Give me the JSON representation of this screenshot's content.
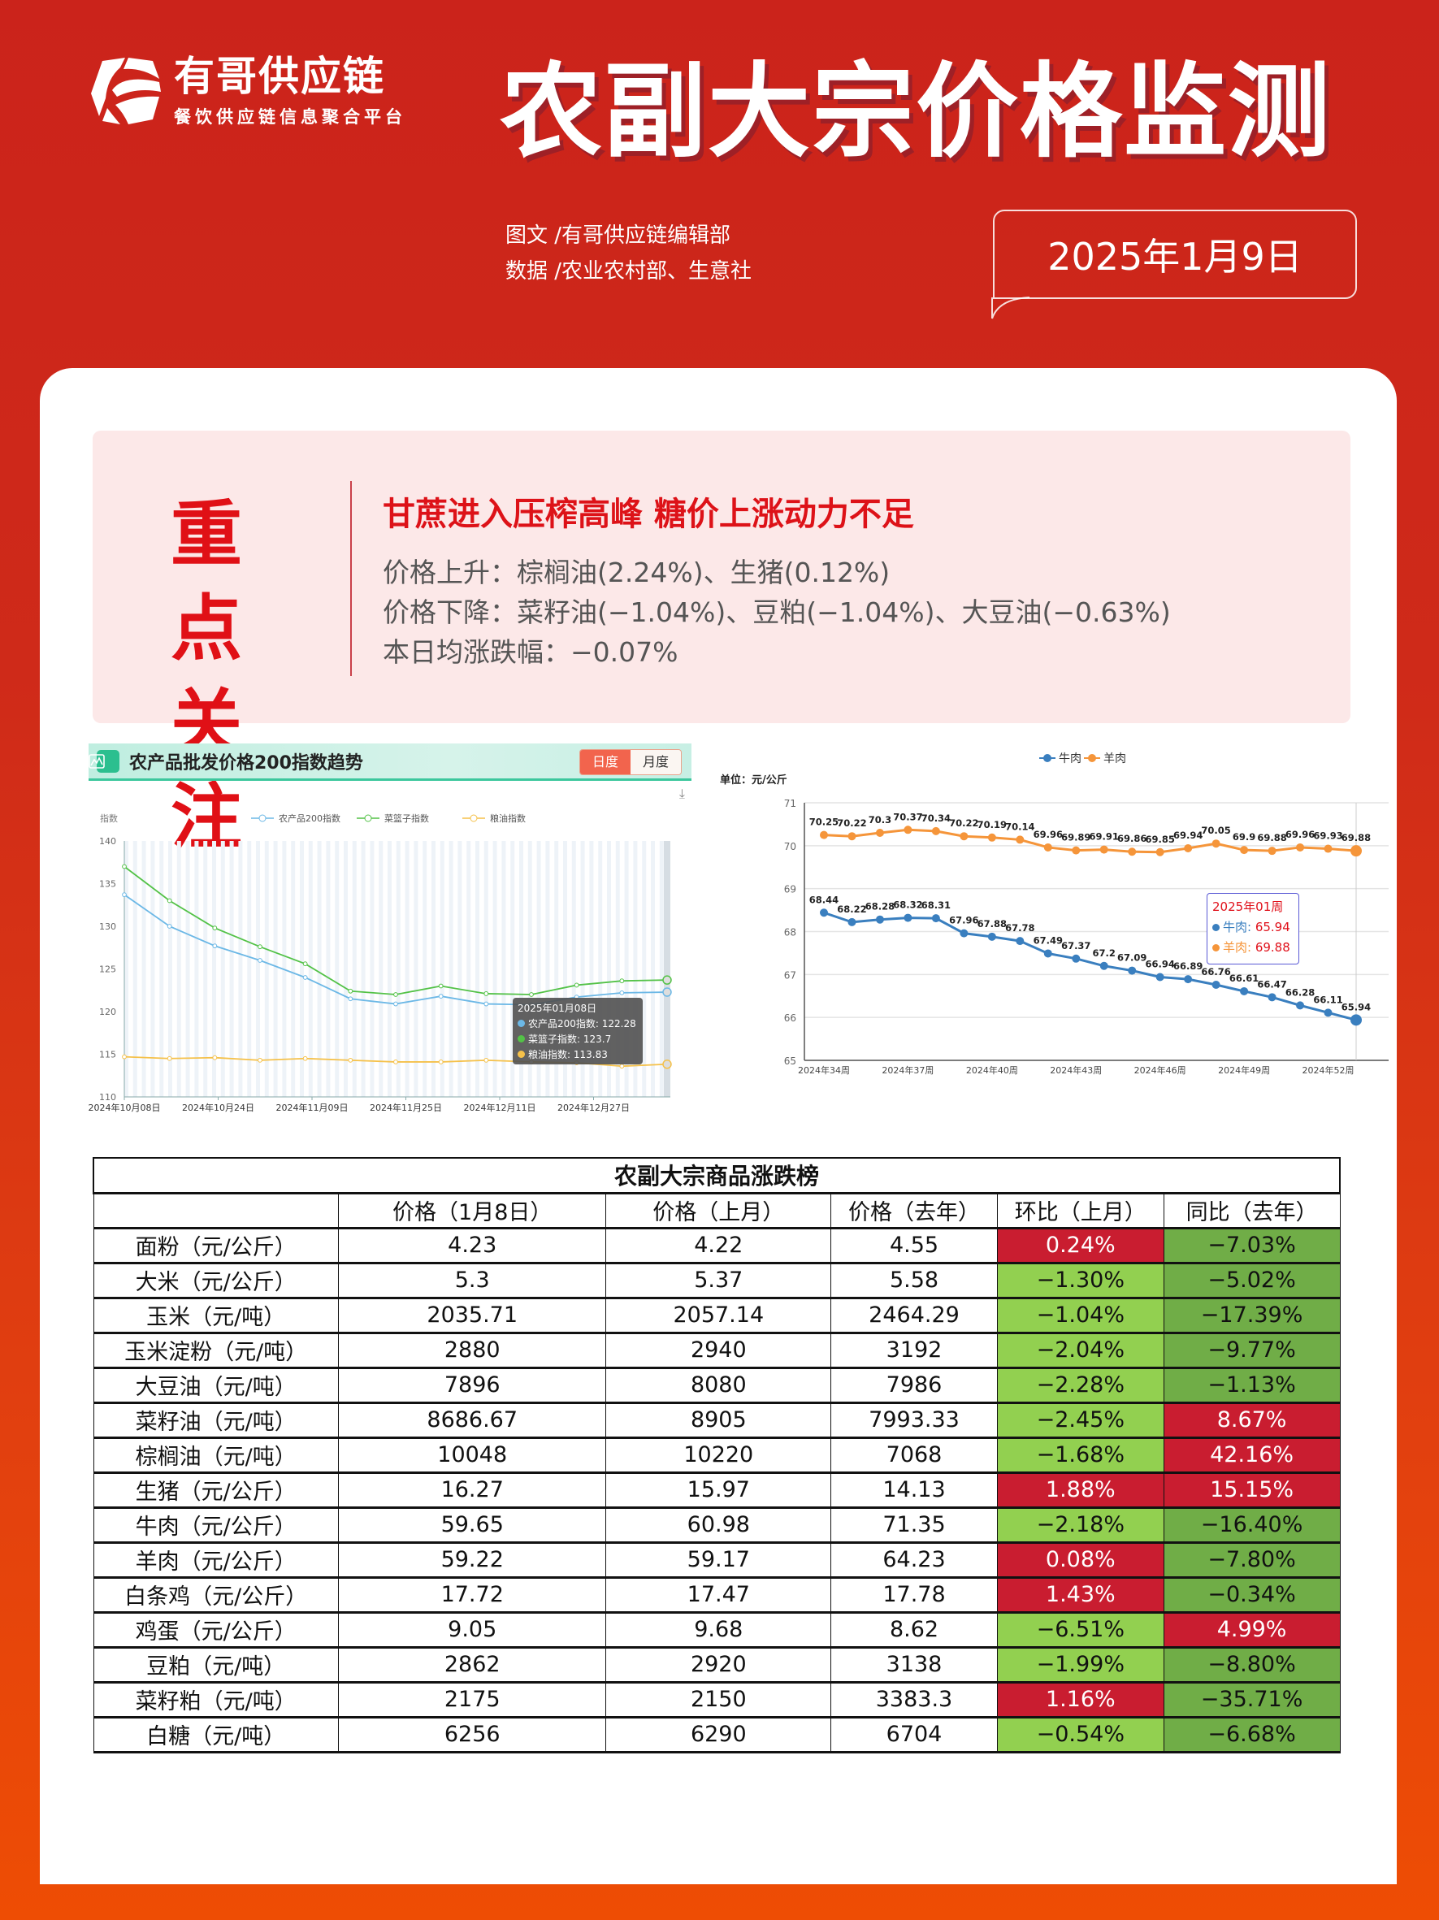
{
  "header": {
    "logo_name": "有哥供应链",
    "logo_subtitle": "餐饮供应链信息聚合平台",
    "title": "农副大宗价格监测",
    "credit_text": "图文 /有哥供应链编辑部",
    "credit_data": "数据 /农业农村部、生意社",
    "date": "2025年1月9日"
  },
  "focus": {
    "badge_line1": "重点",
    "badge_line2": "关注",
    "headline": "甘蔗进入压榨高峰 糖价上涨动力不足",
    "price_up": "价格上升：棕榈油(2.24%)、生猪(0.12%)",
    "price_down": "价格下降：菜籽油(−1.04%)、豆粕(−1.04%)、大豆油(−0.63%)",
    "avg_change": "本日均涨跌幅：−0.07%"
  },
  "colors": {
    "brand_red": "#cb231b",
    "footer_orange": "#ee4d04",
    "focus_red": "#e01016",
    "up_red": "#c91d30",
    "down_green_light": "#92d050",
    "down_green_dark": "#70ad47",
    "series_blue": "#6cb8e6",
    "series_green": "#53c247",
    "series_yellow": "#f5c14a",
    "beef_blue": "#3a7fbf",
    "lamb_orange": "#f5953a"
  },
  "left_chart": {
    "title": "农产品批发价格200指数趋势",
    "toggle_daily": "日度",
    "toggle_monthly": "月度",
    "download_icon": "⤓",
    "tooltip": {
      "date": "2025年01月08日",
      "line1": "农产品200指数: 122.28",
      "line2": "菜篮子指数: 123.7",
      "line3": "粮油指数: 113.83"
    }
  },
  "right_chart": {
    "unit": "单位：元/公斤",
    "tooltip": {
      "title": "2025年01周",
      "beef_label": "牛肉: ",
      "beef_value": "65.94",
      "lamb_label": "羊肉: ",
      "lamb_value": "69.88"
    }
  },
  "chart_data": [
    {
      "type": "line",
      "title": "农产品批发价格200指数趋势",
      "ylabel": "指数",
      "xlabel": "",
      "ylim": [
        110,
        140
      ],
      "yticks": [
        110,
        115,
        120,
        125,
        130,
        135,
        140
      ],
      "x_tick_labels": [
        "2024年10月08日",
        "2024年10月24日",
        "2024年11月09日",
        "2024年11月25日",
        "2024年12月11日",
        "2024年12月27日"
      ],
      "legend_position": "top",
      "grid": true,
      "x": [
        "2024-10-08",
        "2024-10-16",
        "2024-10-24",
        "2024-11-01",
        "2024-11-09",
        "2024-11-17",
        "2024-11-25",
        "2024-12-03",
        "2024-12-11",
        "2024-12-19",
        "2024-12-27",
        "2025-01-04",
        "2025-01-08"
      ],
      "series": [
        {
          "name": "农产品200指数",
          "values": [
            133.7,
            130.0,
            127.7,
            126.0,
            124.0,
            121.5,
            120.9,
            121.8,
            120.9,
            120.8,
            121.7,
            122.2,
            122.28
          ]
        },
        {
          "name": "菜篮子指数",
          "values": [
            137.0,
            133.0,
            129.8,
            127.6,
            125.6,
            122.4,
            122.0,
            123.0,
            122.1,
            122.0,
            123.1,
            123.6,
            123.7
          ]
        },
        {
          "name": "粮油指数",
          "values": [
            114.7,
            114.5,
            114.6,
            114.3,
            114.5,
            114.3,
            114.1,
            114.1,
            114.3,
            114.1,
            114.0,
            113.6,
            113.83
          ]
        }
      ],
      "tooltip": {
        "x": "2025年01月08日",
        "values": [
          122.28,
          123.7,
          113.83
        ]
      }
    },
    {
      "type": "line",
      "title": "",
      "ylabel": "单位：元/公斤",
      "xlabel": "",
      "ylim": [
        65,
        71
      ],
      "yticks": [
        65,
        66,
        67,
        68,
        69,
        70,
        71
      ],
      "legend_position": "top",
      "grid": true,
      "x": [
        "2024年34周",
        "2024年35周",
        "2024年36周",
        "2024年37周",
        "2024年38周",
        "2024年39周",
        "2024年40周",
        "2024年41周",
        "2024年42周",
        "2024年43周",
        "2024年44周",
        "2024年45周",
        "2024年46周",
        "2024年47周",
        "2024年48周",
        "2024年49周",
        "2024年50周",
        "2024年51周",
        "2024年52周",
        "2025年01周"
      ],
      "x_tick_labels": [
        "2024年34周",
        "2024年37周",
        "2024年40周",
        "2024年43周",
        "2024年46周",
        "2024年49周",
        "2024年52周"
      ],
      "series": [
        {
          "name": "牛肉",
          "values": [
            68.44,
            68.22,
            68.28,
            68.32,
            68.31,
            67.96,
            67.88,
            67.78,
            67.49,
            67.37,
            67.2,
            67.09,
            66.94,
            66.89,
            66.76,
            66.61,
            66.47,
            66.28,
            66.11,
            65.94
          ]
        },
        {
          "name": "羊肉",
          "values": [
            70.25,
            70.22,
            70.3,
            70.37,
            70.34,
            70.22,
            70.19,
            70.14,
            69.96,
            69.89,
            69.91,
            69.86,
            69.85,
            69.94,
            70.05,
            69.9,
            69.88,
            69.96,
            69.93,
            69.88
          ]
        }
      ],
      "tooltip": {
        "x": "2025年01周",
        "values": [
          65.94,
          69.88
        ]
      }
    },
    {
      "type": "table",
      "title": "农副大宗商品涨跌榜",
      "columns": [
        "",
        "价格（1月8日）",
        "价格（上月）",
        "价格（去年）",
        "环比（上月）",
        "同比（去年）"
      ],
      "rows": [
        [
          "面粉（元/公斤）",
          "4.23",
          "4.22",
          "4.55",
          "0.24%",
          "−7.03%"
        ],
        [
          "大米（元/公斤）",
          "5.3",
          "5.37",
          "5.58",
          "−1.30%",
          "−5.02%"
        ],
        [
          "玉米（元/吨）",
          "2035.71",
          "2057.14",
          "2464.29",
          "−1.04%",
          "−17.39%"
        ],
        [
          "玉米淀粉（元/吨）",
          "2880",
          "2940",
          "3192",
          "−2.04%",
          "−9.77%"
        ],
        [
          "大豆油（元/吨）",
          "7896",
          "8080",
          "7986",
          "−2.28%",
          "−1.13%"
        ],
        [
          "菜籽油（元/吨）",
          "8686.67",
          "8905",
          "7993.33",
          "−2.45%",
          "8.67%"
        ],
        [
          "棕榈油（元/吨）",
          "10048",
          "10220",
          "7068",
          "−1.68%",
          "42.16%"
        ],
        [
          "生猪（元/公斤）",
          "16.27",
          "15.97",
          "14.13",
          "1.88%",
          "15.15%"
        ],
        [
          "牛肉（元/公斤）",
          "59.65",
          "60.98",
          "71.35",
          "−2.18%",
          "−16.40%"
        ],
        [
          "羊肉（元/公斤）",
          "59.22",
          "59.17",
          "64.23",
          "0.08%",
          "−7.80%"
        ],
        [
          "白条鸡（元/公斤）",
          "17.72",
          "17.47",
          "17.78",
          "1.43%",
          "−0.34%"
        ],
        [
          "鸡蛋（元/公斤）",
          "9.05",
          "9.68",
          "8.62",
          "−6.51%",
          "4.99%"
        ],
        [
          "豆粕（元/吨）",
          "2862",
          "2920",
          "3138",
          "−1.99%",
          "−8.80%"
        ],
        [
          "菜籽粕（元/吨）",
          "2175",
          "2150",
          "3383.3",
          "1.16%",
          "−35.71%"
        ],
        [
          "白糖（元/吨）",
          "6256",
          "6290",
          "6704",
          "−0.54%",
          "−6.68%"
        ]
      ]
    }
  ]
}
